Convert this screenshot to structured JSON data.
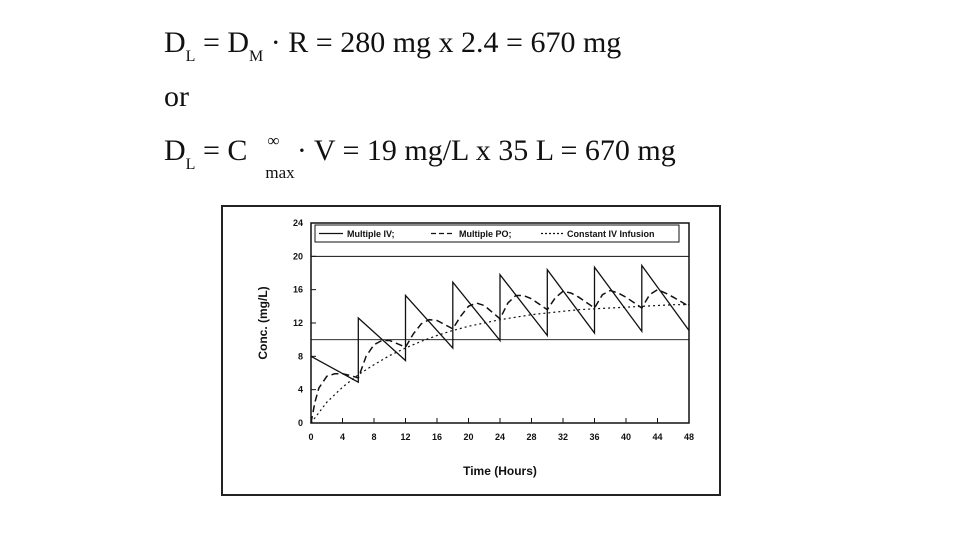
{
  "equations": {
    "eq1": {
      "lhs": "D",
      "lhs_sub": "L",
      "eq_a": " = D",
      "sub_m": "M",
      "rest": " · R = 280 mg x 2.4 = 670 mg"
    },
    "or_text": "or",
    "eq2": {
      "lhs": "D",
      "lhs_sub": "L",
      "eq_a": " = C",
      "sup": "∞",
      "sub_max": "max",
      "rest": " · V = 19 mg/L x 35 L = 670 mg"
    }
  },
  "chart_data": {
    "type": "line",
    "xlabel": "Time (Hours)",
    "ylabel": "Conc. (mg/L)",
    "xlim": [
      0,
      48
    ],
    "ylim": [
      0,
      24
    ],
    "xticks": [
      0,
      4,
      8,
      12,
      16,
      20,
      24,
      28,
      32,
      36,
      40,
      44,
      48
    ],
    "yticks": [
      0,
      4,
      8,
      12,
      16,
      20,
      24
    ],
    "reference_lines": [
      20,
      10
    ],
    "legend_position": "top",
    "series": [
      {
        "name": "Multiple IV;",
        "style": "solid",
        "x": [
          0,
          6,
          6,
          12,
          12,
          18,
          18,
          24,
          24,
          30,
          30,
          36,
          36,
          42,
          42,
          48
        ],
        "y": [
          8.0,
          4.9,
          12.6,
          7.5,
          15.3,
          9.0,
          16.9,
          9.9,
          17.8,
          10.5,
          18.4,
          10.8,
          18.7,
          11.0,
          18.9,
          11.1
        ]
      },
      {
        "name": "Multiple PO;",
        "style": "dashed",
        "x": [
          0,
          0.5,
          1,
          2,
          3,
          4,
          5,
          6,
          7,
          8,
          9,
          10,
          12,
          13,
          14,
          15,
          16,
          18,
          19,
          20,
          21,
          22,
          24,
          25,
          26,
          27,
          28,
          30,
          31,
          32,
          33,
          34,
          36,
          37,
          38,
          39,
          40,
          42,
          43,
          44,
          45,
          46,
          48
        ],
        "y": [
          0.0,
          2.5,
          4.2,
          5.6,
          5.9,
          5.9,
          5.7,
          5.4,
          8.0,
          9.4,
          9.9,
          9.9,
          9.1,
          10.7,
          11.9,
          12.4,
          12.3,
          11.3,
          12.8,
          14.0,
          14.4,
          14.1,
          12.5,
          14.4,
          15.3,
          15.3,
          14.9,
          13.6,
          15.0,
          15.8,
          15.6,
          15.1,
          13.8,
          15.4,
          15.9,
          15.6,
          15.1,
          13.8,
          15.4,
          16.0,
          15.6,
          15.1,
          14.0
        ]
      },
      {
        "name": "Constant IV Infusion",
        "style": "dotted",
        "x": [
          0,
          2,
          4,
          6,
          8,
          10,
          12,
          14,
          16,
          18,
          20,
          22,
          24,
          26,
          28,
          30,
          32,
          34,
          36,
          38,
          40,
          42,
          44,
          46,
          48
        ],
        "y": [
          0.0,
          2.5,
          4.3,
          5.8,
          7.0,
          8.1,
          9.0,
          9.8,
          10.5,
          11.1,
          11.6,
          12.0,
          12.4,
          12.7,
          13.0,
          13.2,
          13.4,
          13.6,
          13.7,
          13.8,
          13.9,
          14.0,
          14.1,
          14.2,
          14.2
        ]
      }
    ]
  }
}
